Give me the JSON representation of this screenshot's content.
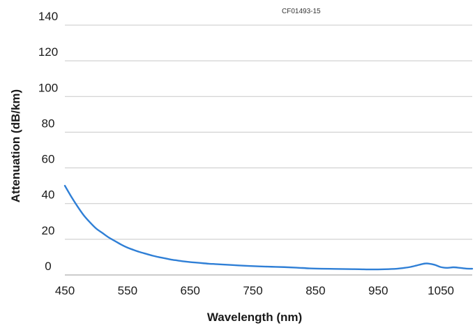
{
  "chart_data": {
    "type": "line",
    "xlabel": "Wavelength (nm)",
    "ylabel": "Attenuation (dB/km)",
    "figure_code": "CF01493-15",
    "xlim": [
      450,
      1100
    ],
    "ylim": [
      0,
      140
    ],
    "x_ticks": [
      "450",
      "550",
      "650",
      "750",
      "850",
      "950",
      "1050"
    ],
    "y_ticks": [
      "0",
      "20",
      "40",
      "60",
      "80",
      "100",
      "120",
      "140"
    ],
    "grid": "horizontal",
    "line_color": "#2f7fd6",
    "grid_color": "#c8c8c8",
    "series": [
      {
        "x": [
          450,
          460,
          470,
          480,
          490,
          500,
          510,
          520,
          530,
          540,
          550,
          560,
          570,
          580,
          590,
          600,
          610,
          620,
          630,
          640,
          650,
          660,
          670,
          680,
          690,
          700,
          720,
          740,
          760,
          780,
          800,
          820,
          840,
          860,
          880,
          900,
          920,
          940,
          960,
          980,
          990,
          1000,
          1010,
          1020,
          1025,
          1030,
          1040,
          1050,
          1060,
          1070,
          1080,
          1090,
          1100
        ],
        "y": [
          50,
          44,
          38.5,
          33.5,
          29.5,
          26,
          23.5,
          21,
          19,
          17,
          15.3,
          14,
          12.8,
          11.8,
          10.8,
          10,
          9.3,
          8.6,
          8.1,
          7.6,
          7.2,
          6.9,
          6.6,
          6.3,
          6.1,
          5.9,
          5.5,
          5.1,
          4.8,
          4.6,
          4.4,
          4.1,
          3.7,
          3.5,
          3.4,
          3.3,
          3.2,
          3.1,
          3.2,
          3.5,
          3.9,
          4.4,
          5.2,
          6.1,
          6.4,
          6.4,
          5.7,
          4.4,
          4.0,
          4.3,
          4.0,
          3.6,
          3.5
        ]
      }
    ]
  }
}
